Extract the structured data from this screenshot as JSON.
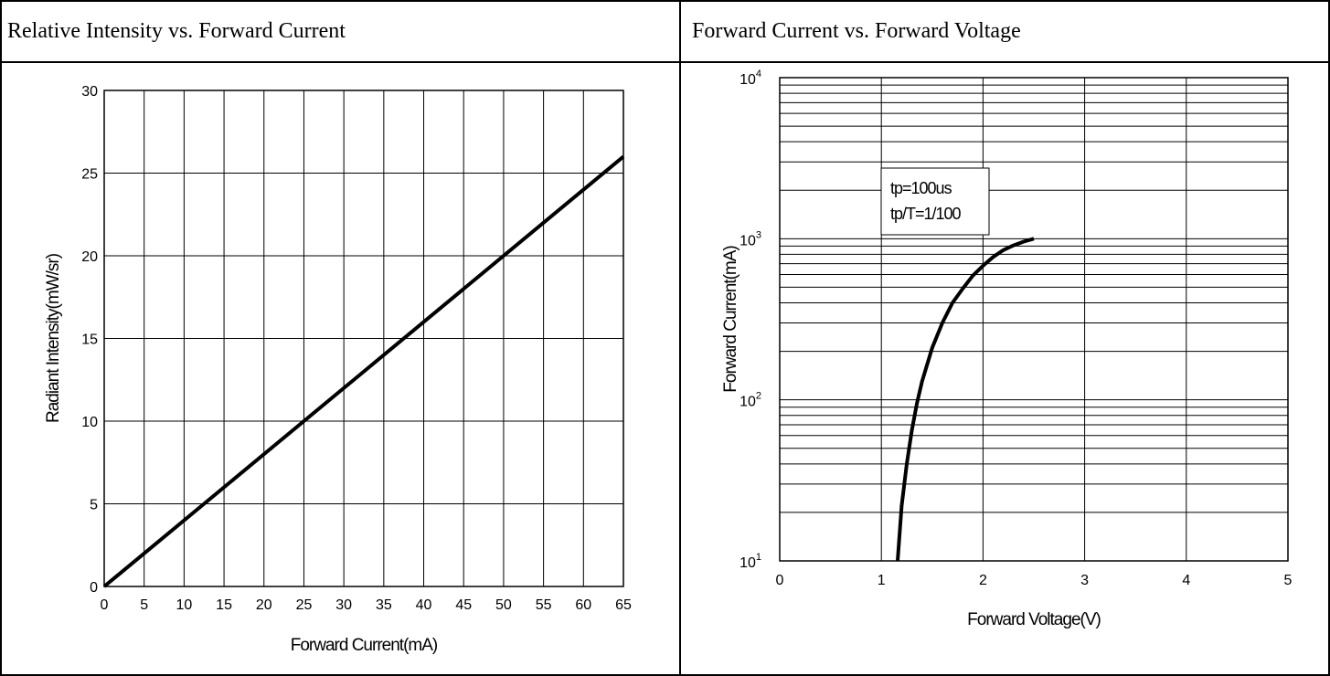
{
  "panels": [
    {
      "title": "Relative Intensity vs. Forward Current"
    },
    {
      "title": "Forward Current vs. Forward Voltage"
    }
  ],
  "chart_data": [
    {
      "type": "line",
      "title": "Relative Intensity vs. Forward Current",
      "xlabel": "Forward Current(mA)",
      "ylabel": "Radiant Intensity(mW/sr)",
      "xlim": [
        0,
        65
      ],
      "ylim": [
        0,
        30
      ],
      "xticks": [
        0,
        5,
        10,
        15,
        20,
        25,
        30,
        35,
        40,
        45,
        50,
        55,
        60,
        65
      ],
      "yticks": [
        0,
        5,
        10,
        15,
        20,
        25,
        30
      ],
      "grid": true,
      "series": [
        {
          "x": [
            0,
            65
          ],
          "y": [
            0,
            26
          ]
        }
      ]
    },
    {
      "type": "line",
      "title": "Forward Current vs. Forward Voltage",
      "xlabel": "Forward Voltage(V)",
      "ylabel": "Forward Current(mA)",
      "xlim": [
        0,
        5
      ],
      "ylim": [
        10,
        10000
      ],
      "yscale": "log",
      "xticks": [
        0,
        1,
        2,
        3,
        4,
        5
      ],
      "yticks": [
        "10^1",
        "10^2",
        "10^3",
        "10^4"
      ],
      "grid": true,
      "annotation": [
        "tp=100us",
        "tp/T=1/100"
      ],
      "series": [
        {
          "x": [
            1.16,
            1.2,
            1.25,
            1.3,
            1.35,
            1.4,
            1.5,
            1.6,
            1.7,
            1.8,
            1.9,
            2.0,
            2.1,
            2.2,
            2.3,
            2.4,
            2.5
          ],
          "y": [
            10,
            22,
            40,
            65,
            95,
            130,
            210,
            300,
            400,
            490,
            590,
            680,
            770,
            850,
            910,
            960,
            1000
          ]
        }
      ]
    }
  ]
}
